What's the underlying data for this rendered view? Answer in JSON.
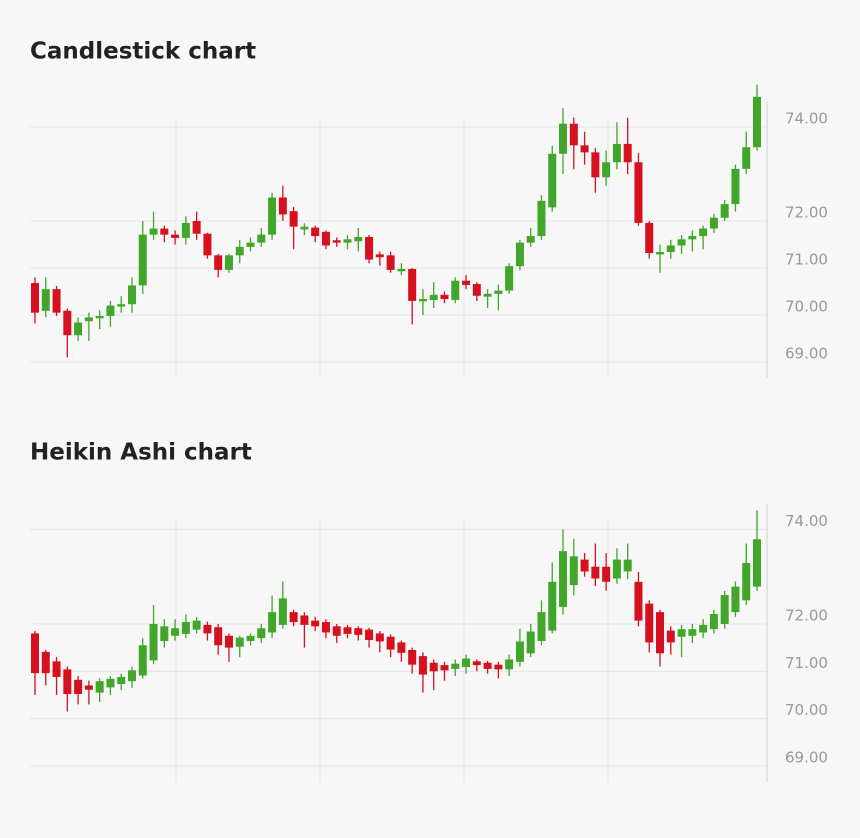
{
  "chart_data": [
    {
      "type": "candlestick",
      "title": "Candlestick chart",
      "up_color": "#41a62a",
      "down_color": "#d6101f",
      "grid": true,
      "ylim": [
        68.66,
        75.0
      ],
      "yticks": [
        {
          "value": 74,
          "label": "74.00"
        },
        {
          "value": 72,
          "label": "72.00"
        },
        {
          "value": 71,
          "label": "71.00"
        },
        {
          "value": 70,
          "label": "70.00"
        },
        {
          "value": 69,
          "label": "69.00"
        }
      ],
      "open": [
        70.68,
        70.09,
        70.55,
        70.09,
        69.57,
        69.87,
        69.93,
        69.98,
        70.18,
        70.23,
        70.63,
        71.71,
        71.84,
        71.71,
        71.64,
        72.0,
        71.73,
        71.27,
        70.96,
        71.27,
        71.45,
        71.54,
        71.71,
        72.5,
        72.21,
        71.82,
        71.86,
        71.77,
        71.59,
        71.54,
        71.57,
        71.66,
        71.29,
        71.27,
        70.93,
        70.98,
        70.29,
        70.32,
        70.43,
        70.32,
        70.73,
        70.66,
        70.39,
        70.45,
        70.52,
        71.04,
        71.54,
        71.68,
        72.29,
        73.43,
        74.07,
        73.61,
        73.46,
        72.93,
        73.25,
        73.64,
        73.25,
        71.96,
        71.29,
        71.34,
        71.48,
        71.61,
        71.68,
        71.84,
        72.07,
        72.36,
        73.11,
        73.57
      ],
      "high": [
        70.8,
        70.8,
        70.62,
        70.14,
        69.95,
        70.05,
        70.1,
        70.3,
        70.4,
        70.8,
        72.0,
        72.2,
        71.9,
        71.8,
        72.1,
        72.2,
        71.75,
        71.3,
        71.3,
        71.6,
        71.65,
        71.85,
        72.6,
        72.75,
        72.3,
        71.95,
        71.9,
        71.8,
        71.65,
        71.7,
        71.85,
        71.7,
        71.35,
        71.35,
        71.1,
        71.0,
        70.55,
        70.7,
        70.5,
        70.8,
        70.85,
        70.7,
        70.55,
        70.65,
        71.1,
        71.6,
        71.85,
        72.55,
        73.6,
        74.4,
        74.2,
        73.9,
        73.55,
        73.5,
        74.1,
        74.2,
        73.45,
        72.0,
        71.5,
        71.6,
        71.7,
        71.8,
        71.9,
        72.15,
        72.45,
        73.2,
        73.9,
        74.9
      ],
      "low": [
        69.82,
        69.95,
        69.98,
        69.1,
        69.45,
        69.45,
        69.7,
        69.75,
        70.05,
        70.05,
        70.45,
        71.6,
        71.55,
        71.5,
        71.5,
        71.6,
        71.2,
        70.8,
        70.9,
        71.1,
        71.35,
        71.45,
        71.6,
        72.0,
        71.4,
        71.7,
        71.55,
        71.4,
        71.45,
        71.4,
        71.35,
        71.1,
        71.05,
        70.9,
        70.85,
        69.8,
        70.0,
        70.15,
        70.25,
        70.25,
        70.55,
        70.3,
        70.15,
        70.1,
        70.45,
        70.95,
        71.45,
        71.6,
        72.2,
        73.0,
        73.1,
        73.2,
        72.6,
        72.75,
        73.1,
        73.0,
        71.9,
        71.2,
        70.9,
        71.2,
        71.3,
        71.35,
        71.4,
        71.75,
        72.0,
        72.2,
        73.0,
        73.5
      ],
      "close": [
        70.05,
        70.55,
        70.05,
        69.57,
        69.84,
        69.95,
        69.98,
        70.2,
        70.23,
        70.63,
        71.71,
        71.84,
        71.71,
        71.64,
        71.96,
        71.73,
        71.27,
        70.96,
        71.27,
        71.45,
        71.54,
        71.71,
        72.5,
        72.14,
        71.88,
        71.88,
        71.68,
        71.48,
        71.54,
        71.61,
        71.66,
        71.18,
        71.23,
        70.96,
        70.98,
        70.3,
        70.34,
        70.43,
        70.34,
        70.73,
        70.64,
        70.41,
        70.45,
        70.52,
        71.04,
        71.54,
        71.68,
        72.43,
        73.43,
        74.07,
        73.61,
        73.46,
        72.93,
        73.25,
        73.64,
        73.25,
        71.96,
        71.32,
        71.34,
        71.48,
        71.61,
        71.68,
        71.84,
        72.07,
        72.36,
        73.11,
        73.57,
        74.64
      ]
    },
    {
      "type": "candlestick",
      "title": "Heikin Ashi chart",
      "up_color": "#41a62a",
      "down_color": "#d6101f",
      "grid": true,
      "ylim": [
        68.66,
        75.0
      ],
      "yticks": [
        {
          "value": 74,
          "label": "74.00"
        },
        {
          "value": 72,
          "label": "72.00"
        },
        {
          "value": 71,
          "label": "71.00"
        },
        {
          "value": 70,
          "label": "70.00"
        },
        {
          "value": 69,
          "label": "69.00"
        }
      ],
      "open": [
        71.8,
        71.41,
        71.21,
        71.04,
        70.82,
        70.7,
        70.55,
        70.66,
        70.73,
        70.79,
        70.91,
        71.23,
        71.64,
        71.75,
        71.79,
        71.88,
        71.98,
        71.93,
        71.75,
        71.52,
        71.64,
        71.7,
        71.82,
        71.98,
        72.25,
        72.18,
        72.07,
        72.04,
        71.95,
        71.93,
        71.91,
        71.88,
        71.8,
        71.73,
        71.61,
        71.45,
        71.32,
        71.18,
        71.13,
        71.05,
        71.09,
        71.21,
        71.18,
        71.14,
        71.04,
        71.2,
        71.38,
        71.64,
        71.86,
        72.36,
        72.82,
        73.36,
        73.21,
        73.21,
        72.96,
        73.11,
        72.89,
        72.43,
        72.25,
        71.86,
        71.73,
        71.75,
        71.82,
        71.89,
        72.0,
        72.25,
        72.5,
        72.79
      ],
      "high": [
        71.85,
        71.45,
        71.3,
        71.1,
        70.9,
        70.8,
        70.85,
        70.9,
        70.95,
        71.1,
        71.7,
        72.4,
        72.1,
        72.1,
        72.2,
        72.15,
        72.05,
        72.0,
        71.8,
        71.75,
        71.8,
        72.0,
        72.6,
        72.9,
        72.3,
        72.25,
        72.15,
        72.1,
        72.0,
        71.98,
        71.95,
        71.92,
        71.85,
        71.78,
        71.65,
        71.5,
        71.4,
        71.25,
        71.2,
        71.25,
        71.35,
        71.25,
        71.22,
        71.2,
        71.35,
        71.9,
        72.0,
        72.5,
        73.3,
        74.0,
        73.8,
        73.5,
        73.7,
        73.5,
        73.6,
        73.7,
        73.1,
        72.5,
        72.3,
        71.95,
        71.98,
        72.0,
        72.1,
        72.3,
        72.7,
        72.9,
        73.7,
        74.4
      ],
      "low": [
        70.5,
        70.7,
        70.5,
        70.15,
        70.3,
        70.3,
        70.35,
        70.5,
        70.6,
        70.65,
        70.85,
        71.15,
        71.5,
        71.65,
        71.7,
        71.8,
        71.65,
        71.35,
        71.2,
        71.3,
        71.55,
        71.6,
        71.7,
        71.9,
        71.95,
        71.5,
        71.85,
        71.7,
        71.6,
        71.7,
        71.65,
        71.5,
        71.4,
        71.3,
        71.2,
        70.95,
        70.55,
        70.6,
        70.8,
        70.9,
        70.95,
        71.0,
        70.95,
        70.85,
        70.9,
        71.1,
        71.3,
        71.55,
        71.8,
        72.2,
        72.6,
        73.0,
        72.8,
        72.7,
        72.85,
        72.95,
        71.95,
        71.4,
        71.1,
        71.35,
        71.3,
        71.6,
        71.7,
        71.8,
        71.9,
        72.15,
        72.4,
        72.7
      ],
      "close": [
        70.96,
        70.96,
        70.88,
        70.52,
        70.52,
        70.61,
        70.79,
        70.84,
        70.88,
        71.02,
        71.55,
        72.0,
        71.95,
        71.91,
        72.04,
        72.07,
        71.8,
        71.55,
        71.5,
        71.71,
        71.75,
        71.91,
        72.25,
        72.54,
        72.04,
        71.98,
        71.95,
        71.82,
        71.75,
        71.79,
        71.77,
        71.66,
        71.63,
        71.46,
        71.39,
        71.14,
        70.93,
        71.0,
        71.02,
        71.16,
        71.27,
        71.13,
        71.05,
        71.04,
        71.25,
        71.63,
        71.84,
        72.25,
        72.89,
        73.54,
        73.43,
        73.11,
        72.96,
        72.89,
        73.36,
        73.36,
        72.07,
        71.61,
        71.38,
        71.61,
        71.89,
        71.89,
        71.98,
        72.21,
        72.61,
        72.79,
        73.29,
        73.79
      ]
    }
  ]
}
